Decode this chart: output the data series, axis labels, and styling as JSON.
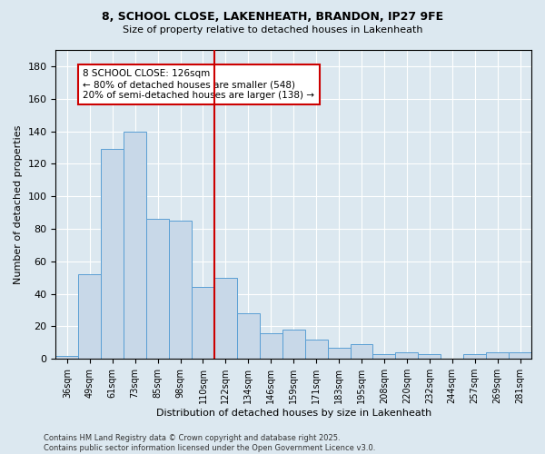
{
  "title1": "8, SCHOOL CLOSE, LAKENHEATH, BRANDON, IP27 9FE",
  "title2": "Size of property relative to detached houses in Lakenheath",
  "xlabel": "Distribution of detached houses by size in Lakenheath",
  "ylabel": "Number of detached properties",
  "categories": [
    "36sqm",
    "49sqm",
    "61sqm",
    "73sqm",
    "85sqm",
    "98sqm",
    "110sqm",
    "122sqm",
    "134sqm",
    "146sqm",
    "159sqm",
    "171sqm",
    "183sqm",
    "195sqm",
    "208sqm",
    "220sqm",
    "232sqm",
    "244sqm",
    "257sqm",
    "269sqm",
    "281sqm"
  ],
  "values": [
    2,
    52,
    129,
    140,
    86,
    85,
    44,
    50,
    28,
    16,
    18,
    12,
    7,
    9,
    3,
    4,
    3,
    0,
    3,
    4,
    4
  ],
  "bar_color": "#c8d8e8",
  "bar_edge_color": "#5a9fd4",
  "vline_color": "#cc0000",
  "annotation_text": "8 SCHOOL CLOSE: 126sqm\n← 80% of detached houses are smaller (548)\n20% of semi-detached houses are larger (138) →",
  "annotation_box_color": "#ffffff",
  "annotation_box_edge": "#cc0000",
  "footer_text": "Contains HM Land Registry data © Crown copyright and database right 2025.\nContains public sector information licensed under the Open Government Licence v3.0.",
  "ylim": [
    0,
    190
  ],
  "yticks": [
    0,
    20,
    40,
    60,
    80,
    100,
    120,
    140,
    160,
    180
  ],
  "background_color": "#dce8f0",
  "grid_color": "#ffffff"
}
